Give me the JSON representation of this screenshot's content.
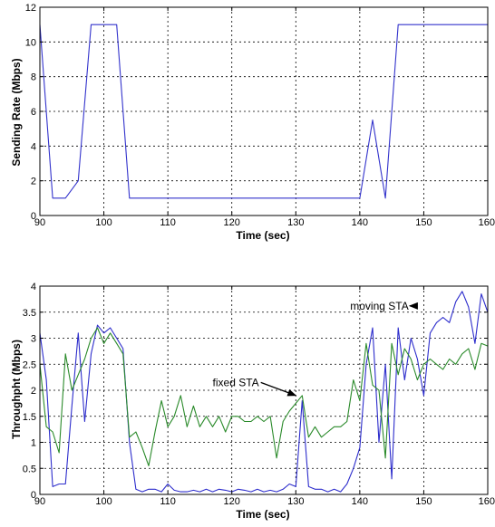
{
  "chart_data": [
    {
      "type": "line",
      "xlabel": "Time (sec)",
      "ylabel": "Sending Rate (Mbps)",
      "xlim": [
        90,
        160
      ],
      "ylim": [
        0,
        12
      ],
      "xticks": [
        90,
        100,
        110,
        120,
        130,
        140,
        150,
        160
      ],
      "yticks": [
        0,
        2,
        4,
        6,
        8,
        10,
        12
      ],
      "grid": true,
      "series": [
        {
          "color": "#3333cc",
          "x": [
            90,
            92,
            94,
            96,
            98,
            100,
            102,
            104,
            110,
            120,
            130,
            140,
            142,
            144,
            146,
            150,
            160
          ],
          "y": [
            11,
            1,
            1,
            2,
            11,
            11,
            11,
            1,
            1,
            1,
            1,
            1,
            5.5,
            1,
            11,
            11,
            11
          ]
        }
      ]
    },
    {
      "type": "line",
      "xlabel": "Time (sec)",
      "ylabel": "Throughpht (Mbps)",
      "xlim": [
        90,
        160
      ],
      "ylim": [
        0,
        4
      ],
      "xticks": [
        90,
        100,
        110,
        120,
        130,
        140,
        150,
        160
      ],
      "yticks": [
        0,
        0.5,
        1,
        1.5,
        2,
        2.5,
        3,
        3.5,
        4
      ],
      "grid": true,
      "annotations": [
        {
          "text": "moving STA",
          "x": 138.5,
          "y": 3.62,
          "arrow_to": [
            147.8,
            3.62
          ]
        },
        {
          "text": "fixed STA",
          "x": 117,
          "y": 2.15,
          "arrow_to": [
            130,
            1.9
          ]
        }
      ],
      "series": [
        {
          "color": "#2d2dcc",
          "x": [
            90,
            91,
            92,
            93,
            94,
            95,
            96,
            97,
            98,
            99,
            100,
            101,
            102,
            103,
            104,
            105,
            106,
            107,
            108,
            109,
            110,
            111,
            112,
            113,
            114,
            115,
            116,
            117,
            118,
            119,
            120,
            121,
            122,
            123,
            124,
            125,
            126,
            127,
            128,
            129,
            130,
            131,
            132,
            133,
            134,
            135,
            136,
            137,
            138,
            139,
            140,
            141,
            142,
            143,
            144,
            145,
            146,
            147,
            148,
            149,
            150,
            151,
            152,
            153,
            154,
            155,
            156,
            157,
            158,
            159,
            160
          ],
          "y": [
            3.1,
            2.2,
            0.15,
            0.2,
            0.2,
            1.7,
            3.1,
            1.4,
            2.7,
            3.25,
            3.1,
            3.2,
            3.0,
            2.8,
            1.0,
            0.1,
            0.05,
            0.1,
            0.1,
            0.05,
            0.2,
            0.08,
            0.05,
            0.05,
            0.08,
            0.05,
            0.1,
            0.05,
            0.1,
            0.08,
            0.05,
            0.1,
            0.08,
            0.05,
            0.1,
            0.05,
            0.08,
            0.05,
            0.1,
            0.2,
            0.15,
            1.8,
            0.15,
            0.1,
            0.1,
            0.05,
            0.1,
            0.05,
            0.2,
            0.5,
            0.9,
            2.5,
            3.2,
            1.0,
            2.5,
            0.3,
            3.2,
            2.2,
            3.0,
            2.6,
            1.9,
            3.1,
            3.3,
            3.4,
            3.3,
            3.7,
            3.9,
            3.6,
            2.9,
            3.85,
            3.5
          ]
        },
        {
          "color": "#2a8a2a",
          "x": [
            90,
            91,
            92,
            93,
            94,
            95,
            96,
            97,
            98,
            99,
            100,
            101,
            102,
            103,
            104,
            105,
            106,
            107,
            108,
            109,
            110,
            111,
            112,
            113,
            114,
            115,
            116,
            117,
            118,
            119,
            120,
            121,
            122,
            123,
            124,
            125,
            126,
            127,
            128,
            129,
            130,
            131,
            132,
            133,
            134,
            135,
            136,
            137,
            138,
            139,
            140,
            141,
            142,
            143,
            144,
            145,
            146,
            147,
            148,
            149,
            150,
            151,
            152,
            153,
            154,
            155,
            156,
            157,
            158,
            159,
            160
          ],
          "y": [
            2.5,
            1.3,
            1.2,
            0.8,
            2.7,
            2.0,
            2.3,
            2.6,
            3.0,
            3.2,
            2.9,
            3.1,
            2.9,
            2.7,
            1.1,
            1.2,
            0.9,
            0.55,
            1.2,
            1.8,
            1.3,
            1.5,
            1.9,
            1.3,
            1.7,
            1.3,
            1.5,
            1.3,
            1.5,
            1.2,
            1.5,
            1.5,
            1.4,
            1.4,
            1.5,
            1.4,
            1.5,
            0.7,
            1.4,
            1.6,
            1.75,
            1.9,
            1.1,
            1.3,
            1.1,
            1.2,
            1.3,
            1.3,
            1.4,
            2.2,
            1.8,
            2.9,
            2.1,
            2.0,
            0.7,
            2.9,
            2.3,
            2.8,
            2.6,
            2.2,
            2.5,
            2.6,
            2.5,
            2.4,
            2.6,
            2.5,
            2.7,
            2.8,
            2.4,
            2.9,
            2.85
          ]
        }
      ]
    }
  ]
}
